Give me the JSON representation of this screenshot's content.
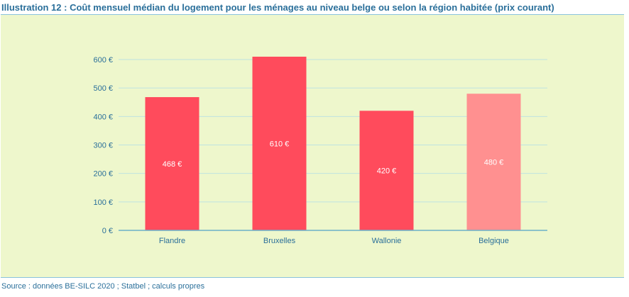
{
  "title": "Illustration 12 : Coût mensuel médian du logement pour les ménages au niveau belge ou selon la région habitée (prix courant)",
  "source": "Source : données BE-SILC 2020 ; Statbel ; calculs propres",
  "colors": {
    "bar_region": "#ff4b5c",
    "bar_belgium": "#ff9090",
    "grid": "#bfe3e0",
    "axis": "#6bb0c8",
    "panel_background": "#eef7cc",
    "text": "#2a6f9a"
  },
  "chart_data": {
    "type": "bar",
    "title": "Illustration 12 : Coût mensuel médian du logement pour les ménages au niveau belge ou selon la région habitée (prix courant)",
    "categories": [
      "Flandre",
      "Bruxelles",
      "Wallonie",
      "Belgique"
    ],
    "values": [
      468,
      610,
      420,
      480
    ],
    "value_labels": [
      "468 €",
      "610 €",
      "420 €",
      "480 €"
    ],
    "ylim": [
      0,
      600
    ],
    "yticks": [
      0,
      100,
      200,
      300,
      400,
      500,
      600
    ],
    "ytick_labels": [
      "0 €",
      "100 €",
      "200 €",
      "300 €",
      "400 €",
      "500 €",
      "600 €"
    ],
    "xlabel": "",
    "ylabel": "",
    "grid": true,
    "legend": "none"
  }
}
